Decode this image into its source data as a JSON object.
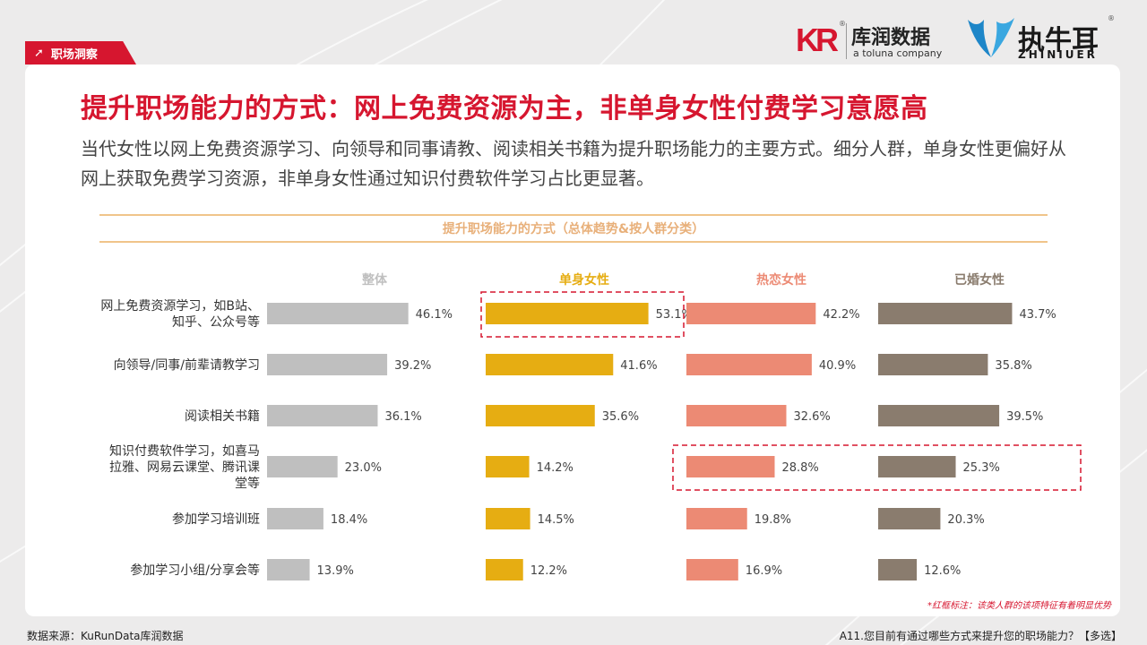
{
  "header": {
    "section_tag": "职场洞察",
    "logos": {
      "kurun_mark": "KR",
      "kurun_name": "库润数据",
      "kurun_sub": "a toluna company",
      "zhiniuer_name": "执牛耳",
      "zhiniuer_sub": "ZHINIUER"
    }
  },
  "title": "提升职场能力的方式：网上免费资源为主，非单身女性付费学习意愿高",
  "subtitle": "当代女性以网上免费资源学习、向领导和同事请教、阅读相关书籍为提升职场能力的主要方式。细分人群，单身女性更偏好从网上获取免费学习资源，非单身女性通过知识付费软件学习占比更显著。",
  "chart_title": "提升职场能力的方式（总体趋势&按人群分类）",
  "note": "*红框标注：该类人群的该项特征有着明显优势",
  "footer": {
    "source": "数据来源：KuRunData库润数据",
    "question": "A11.您目前有通过哪些方式来提升您的职场能力？【多选】"
  },
  "chart_data": {
    "type": "bar",
    "orientation": "horizontal",
    "title": "提升职场能力的方式（总体趋势&按人群分类）",
    "categories": [
      "网上免费资源学习，如B站、知乎、公众号等",
      "向领导/同事/前辈请教学习",
      "阅读相关书籍",
      "知识付费软件学习，如喜马拉雅、网易云课堂、腾讯课堂等",
      "参加学习培训班",
      "参加学习小组/分享会等"
    ],
    "category_lines": [
      [
        "网上免费资源学习，如B站、",
        "知乎、公众号等"
      ],
      [
        "向领导/同事/前辈请教学习"
      ],
      [
        "阅读相关书籍"
      ],
      [
        "知识付费软件学习，如喜马",
        "拉雅、网易云课堂、腾讯课",
        "堂等"
      ],
      [
        "参加学习培训班"
      ],
      [
        "参加学习小组/分享会等"
      ]
    ],
    "series": [
      {
        "name": "整体",
        "color": "#bfbfbf",
        "header_color": "#bfbfbf",
        "values": [
          46.1,
          39.2,
          36.1,
          23.0,
          18.4,
          13.9
        ]
      },
      {
        "name": "单身女性",
        "color": "#e6ad12",
        "header_color": "#e6ad12",
        "values": [
          53.1,
          41.6,
          35.6,
          14.2,
          14.5,
          12.2
        ]
      },
      {
        "name": "热恋女性",
        "color": "#ec8a74",
        "header_color": "#ec8a74",
        "values": [
          42.2,
          40.9,
          32.6,
          28.8,
          19.8,
          16.9
        ]
      },
      {
        "name": "已婚女性",
        "color": "#8a7c6e",
        "header_color": "#8a7c6e",
        "values": [
          43.7,
          35.8,
          39.5,
          25.3,
          20.3,
          12.6
        ]
      }
    ],
    "value_format": "0.0%",
    "highlights": [
      {
        "series": [
          "单身女性"
        ],
        "category": "网上免费资源学习，如B站、知乎、公众号等"
      },
      {
        "series": [
          "热恋女性",
          "已婚女性"
        ],
        "category": "知识付费软件学习，如喜马拉雅、网易云课堂、腾讯课堂等"
      }
    ],
    "highlight_color": "#d6162f"
  }
}
